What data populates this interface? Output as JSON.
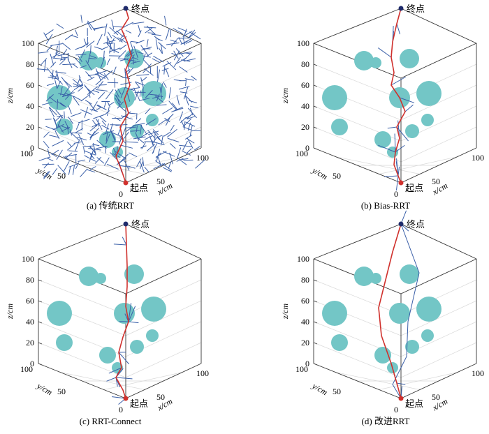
{
  "figure": {
    "panels": [
      {
        "caption": "(a)  传统RRT",
        "start_label": "起点",
        "goal_label": "终点",
        "tree_density": "dense",
        "z_axis": {
          "label": "z/cm",
          "ticks": [
            "0",
            "20",
            "40",
            "60",
            "80",
            "100"
          ]
        },
        "y_axis": {
          "label": "y/cm",
          "ticks": [
            "100",
            "50",
            "0"
          ]
        },
        "x_axis": {
          "label": "x/cm",
          "ticks": [
            "50",
            "100"
          ]
        }
      },
      {
        "caption": "(b)  Bias-RRT",
        "start_label": "起点",
        "goal_label": "终点",
        "tree_density": "sparse",
        "z_axis": {
          "label": "z/cm",
          "ticks": [
            "0",
            "20",
            "40",
            "60",
            "80",
            "100"
          ]
        },
        "y_axis": {
          "label": "y/cm",
          "ticks": [
            "100",
            "50",
            "0"
          ]
        },
        "x_axis": {
          "label": "x/cm",
          "ticks": [
            "50",
            "100"
          ]
        }
      },
      {
        "caption": "(c)  RRT-Connect",
        "start_label": "起点",
        "goal_label": "终点",
        "tree_density": "sparse",
        "z_axis": {
          "label": "z/cm",
          "ticks": [
            "0",
            "20",
            "40",
            "60",
            "80",
            "100"
          ]
        },
        "y_axis": {
          "label": "y/cm",
          "ticks": [
            "100",
            "50",
            "0"
          ]
        },
        "x_axis": {
          "label": "x/cm",
          "ticks": [
            "50",
            "100"
          ]
        }
      },
      {
        "caption": "(d)  改进RRT",
        "start_label": "起点",
        "goal_label": "终点",
        "tree_density": "minimal",
        "z_axis": {
          "label": "z/cm",
          "ticks": [
            "0",
            "20",
            "40",
            "60",
            "80",
            "100"
          ]
        },
        "y_axis": {
          "label": "y/cm",
          "ticks": [
            "100",
            "50",
            "0"
          ]
        },
        "x_axis": {
          "label": "x/cm",
          "ticks": [
            "50",
            "100"
          ]
        }
      }
    ],
    "colors": {
      "obstacle": "#73c6c6",
      "tree": "#3a5fa8",
      "path": "#d0312d",
      "start_marker": "#d0312d",
      "goal_marker": "#1f2b6b",
      "axes": "#333333",
      "grid": "#d9d9d9"
    }
  }
}
